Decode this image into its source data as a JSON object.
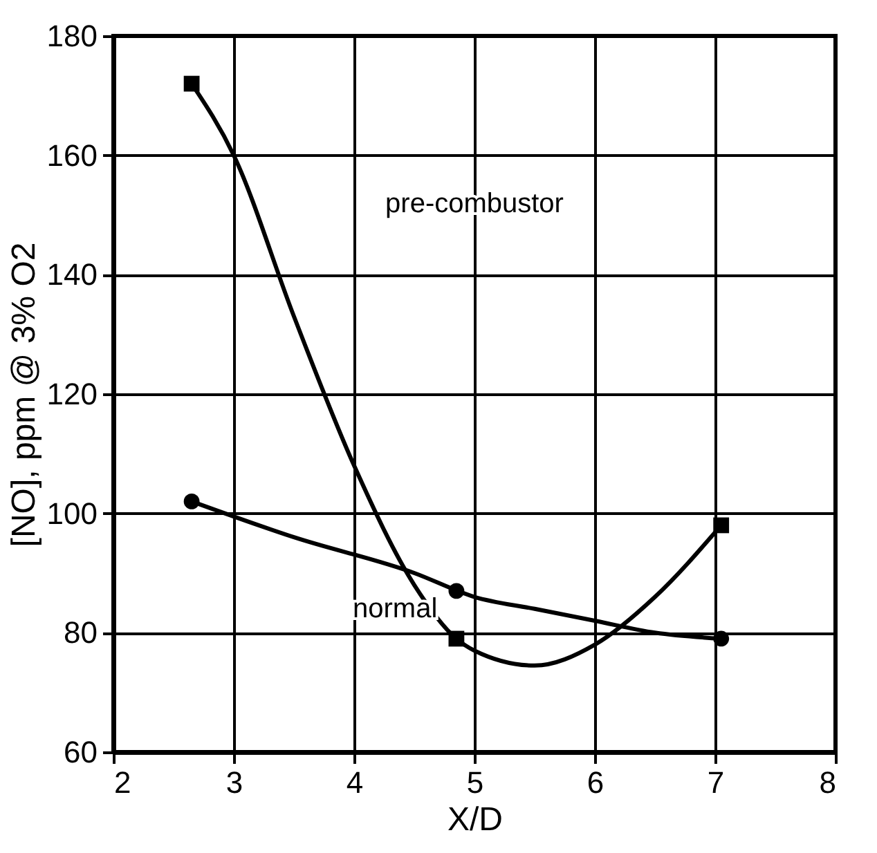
{
  "chart_data": {
    "type": "scatter",
    "xlabel": "X/D",
    "ylabel": "[NO], ppm @ 3% O2",
    "xlim": [
      2,
      8
    ],
    "ylim": [
      60,
      180
    ],
    "xticks": [
      2,
      3,
      4,
      5,
      6,
      7,
      8
    ],
    "yticks": [
      60,
      80,
      100,
      120,
      140,
      160,
      180
    ],
    "grid": true,
    "series": [
      {
        "type": "line",
        "color": "#000000",
        "x": [
          2.65,
          3,
          3.5,
          4,
          4.5,
          4.85,
          5,
          5.5,
          6,
          6.5,
          7.05
        ],
        "values": [
          172,
          160,
          133,
          108,
          88,
          79,
          77,
          74.5,
          78,
          86,
          98
        ]
      },
      {
        "type": "line",
        "color": "#000000",
        "x": [
          2.65,
          3.5,
          4.5,
          5,
          5.5,
          6,
          6.5,
          7.05
        ],
        "values": [
          102,
          96,
          90,
          86,
          84,
          82,
          80,
          79
        ]
      },
      {
        "color": "#000000",
        "marker": "square",
        "x": [
          2.65,
          4.85,
          7.05
        ],
        "values": [
          172,
          79,
          98
        ]
      },
      {
        "color": "#000000",
        "marker": "circle",
        "x": [
          2.65,
          4.85,
          7.05
        ],
        "values": [
          102,
          87,
          79
        ]
      }
    ],
    "annotations": [
      "pre-combustor",
      "normal"
    ]
  }
}
